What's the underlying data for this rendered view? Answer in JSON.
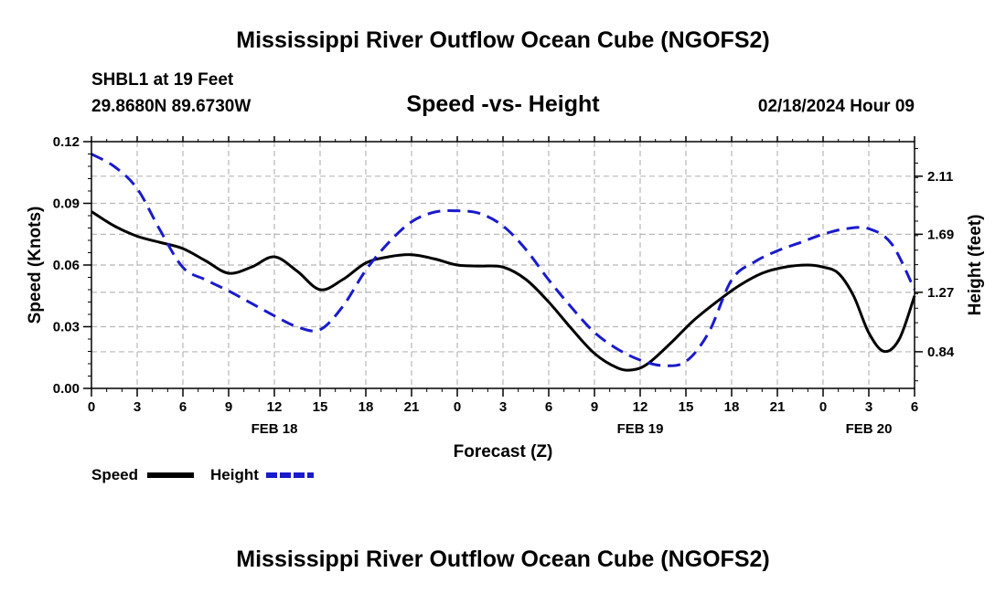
{
  "header": {
    "title": "Mississippi River Outflow Ocean Cube (NGOFS2)",
    "station": "SHBL1 at 19 Feet",
    "coords": "29.8680N  89.6730W",
    "subtitle": "Speed -vs- Height",
    "datetime": "02/18/2024 Hour 09"
  },
  "footer": {
    "title": "Mississippi River Outflow Ocean Cube (NGOFS2)"
  },
  "legend": {
    "speed_label": "Speed",
    "height_label": "Height"
  },
  "colors": {
    "speed": "#000000",
    "height": "#1a1acc",
    "grid": "#b8b8b8"
  },
  "chart_data": {
    "type": "line",
    "title": "Speed -vs- Height",
    "xlabel": "Forecast (Z)",
    "ylabel": "Speed (Knots)",
    "y2label": "Height (feet)",
    "xlim": [
      0,
      54
    ],
    "ylim": [
      0,
      0.12
    ],
    "y2lim": [
      0.575,
      2.36
    ],
    "x_ticks": [
      0,
      3,
      6,
      9,
      12,
      15,
      18,
      21,
      24,
      27,
      30,
      33,
      36,
      39,
      42,
      45,
      48,
      51,
      54
    ],
    "x_tick_labels": [
      "0",
      "3",
      "6",
      "9",
      "12",
      "15",
      "18",
      "21",
      "0",
      "3",
      "6",
      "9",
      "12",
      "15",
      "18",
      "21",
      "0",
      "3",
      "6"
    ],
    "day_labels": [
      {
        "x": 12,
        "label": "FEB 18"
      },
      {
        "x": 36,
        "label": "FEB 19"
      },
      {
        "x": 51,
        "label": "FEB 20"
      }
    ],
    "y_ticks": [
      0,
      0.03,
      0.06,
      0.09,
      0.12
    ],
    "y_tick_labels": [
      "0.00",
      "0.03",
      "0.06",
      "0.09",
      "0.12"
    ],
    "y2_ticks": [
      0.84,
      1.27,
      1.69,
      2.11
    ],
    "y2_tick_labels": [
      "0.84",
      "1.27",
      "1.69",
      "2.11"
    ],
    "grid": true,
    "series": [
      {
        "name": "Speed",
        "axis": "left",
        "style": "solid",
        "x": [
          0,
          1.5,
          3,
          4.5,
          6,
          7.5,
          9,
          10.5,
          12,
          13.5,
          15,
          16.5,
          18,
          19.5,
          21,
          22.5,
          24,
          25.5,
          27,
          28.5,
          30,
          31.5,
          33,
          34.5,
          35.5,
          36.5,
          38,
          39.5,
          41,
          42.5,
          44,
          45.5,
          47,
          48,
          49,
          50,
          51,
          52,
          53,
          54
        ],
        "values": [
          0.086,
          0.079,
          0.074,
          0.071,
          0.068,
          0.062,
          0.056,
          0.059,
          0.064,
          0.057,
          0.048,
          0.053,
          0.061,
          0.064,
          0.065,
          0.063,
          0.06,
          0.0595,
          0.059,
          0.053,
          0.042,
          0.029,
          0.017,
          0.01,
          0.009,
          0.012,
          0.022,
          0.033,
          0.042,
          0.05,
          0.056,
          0.059,
          0.06,
          0.059,
          0.056,
          0.045,
          0.027,
          0.018,
          0.024,
          0.045
        ]
      },
      {
        "name": "Height",
        "axis": "right",
        "style": "dashed",
        "x": [
          0,
          1.5,
          3,
          4.5,
          6,
          7.5,
          9,
          10.5,
          12,
          13.5,
          15,
          16.5,
          18,
          19.5,
          21,
          22.5,
          24,
          25.5,
          27,
          28.5,
          30,
          31.5,
          33,
          34.5,
          36,
          37.5,
          39,
          40.5,
          42,
          43.5,
          45,
          46.5,
          48,
          49.5,
          51,
          52.5,
          54
        ],
        "values": [
          2.27,
          2.18,
          2.02,
          1.72,
          1.45,
          1.36,
          1.28,
          1.19,
          1.1,
          1.02,
          1.0,
          1.17,
          1.43,
          1.63,
          1.78,
          1.85,
          1.86,
          1.84,
          1.75,
          1.58,
          1.36,
          1.16,
          0.98,
          0.86,
          0.78,
          0.74,
          0.77,
          0.98,
          1.36,
          1.49,
          1.57,
          1.63,
          1.69,
          1.73,
          1.73,
          1.62,
          1.29
        ]
      }
    ]
  }
}
